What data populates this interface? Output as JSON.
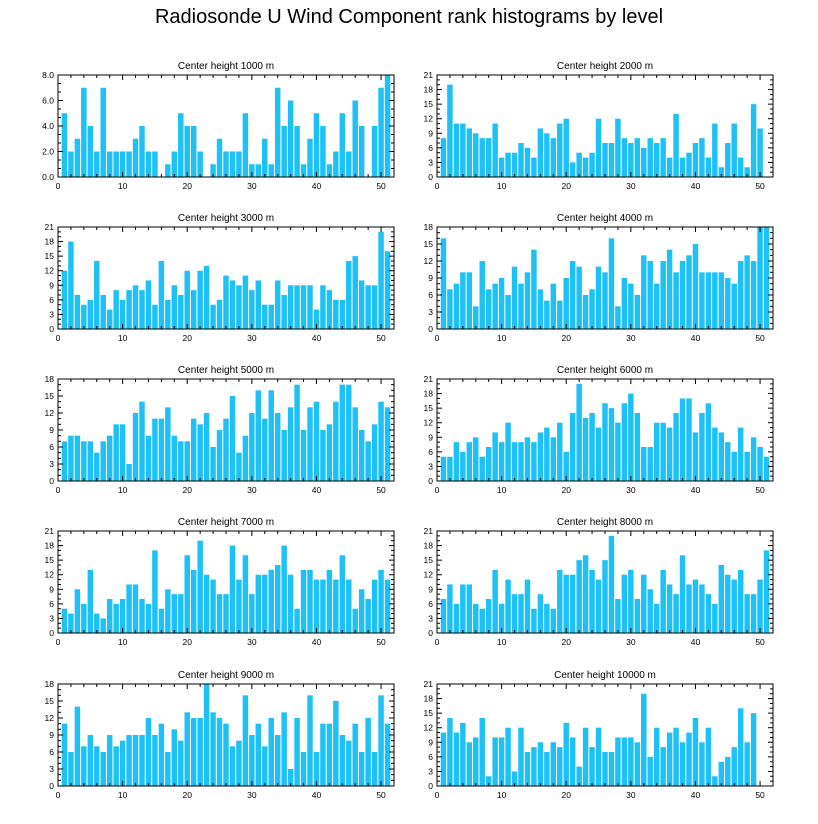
{
  "figure_title": "Radiosonde U Wind Component rank histograms by level",
  "colors": {
    "bar": "#1ec1f6",
    "bar_edge": "#ffffff",
    "axis": "#000000"
  },
  "chart_data": [
    {
      "type": "bar",
      "title": "Center height 1000 m",
      "xlim": [
        0,
        52
      ],
      "ylim": [
        0,
        8
      ],
      "xticks": [
        0,
        10,
        20,
        30,
        40,
        50
      ],
      "yticks": [
        "0.0",
        "2.0",
        "4.0",
        "6.0",
        "8.0"
      ],
      "x": [
        1,
        2,
        3,
        4,
        5,
        6,
        7,
        8,
        9,
        10,
        11,
        12,
        13,
        14,
        15,
        16,
        17,
        18,
        19,
        20,
        21,
        22,
        23,
        24,
        25,
        26,
        27,
        28,
        29,
        30,
        31,
        32,
        33,
        34,
        35,
        36,
        37,
        38,
        39,
        40,
        41,
        42,
        43,
        44,
        45,
        46,
        47,
        48,
        49,
        50,
        51
      ],
      "values": [
        5,
        2,
        3,
        7,
        4,
        2,
        7,
        2,
        2,
        2,
        2,
        3,
        4,
        2,
        2,
        0,
        1,
        2,
        5,
        4,
        4,
        2,
        0,
        1,
        3,
        2,
        2,
        2,
        5,
        1,
        1,
        3,
        1,
        7,
        4,
        6,
        4,
        1,
        3,
        5,
        4,
        1,
        2,
        5,
        2,
        6,
        4,
        0,
        4,
        7,
        8
      ]
    },
    {
      "type": "bar",
      "title": "Center height 2000 m",
      "xlim": [
        0,
        52
      ],
      "ylim": [
        0,
        21
      ],
      "xticks": [
        0,
        10,
        20,
        30,
        40,
        50
      ],
      "yticks": [
        "0",
        "3",
        "6",
        "9",
        "12",
        "15",
        "18",
        "21"
      ],
      "x": [
        1,
        2,
        3,
        4,
        5,
        6,
        7,
        8,
        9,
        10,
        11,
        12,
        13,
        14,
        15,
        16,
        17,
        18,
        19,
        20,
        21,
        22,
        23,
        24,
        25,
        26,
        27,
        28,
        29,
        30,
        31,
        32,
        33,
        34,
        35,
        36,
        37,
        38,
        39,
        40,
        41,
        42,
        43,
        44,
        45,
        46,
        47,
        48,
        49,
        50,
        51
      ],
      "values": [
        8,
        19,
        11,
        11,
        10,
        9,
        8,
        8,
        11,
        4,
        5,
        5,
        7,
        6,
        4,
        10,
        9,
        8,
        11,
        12,
        3,
        5,
        4,
        5,
        12,
        7,
        7,
        12,
        8,
        7,
        8,
        6,
        8,
        7,
        8,
        4,
        13,
        4,
        5,
        7,
        8,
        4,
        11,
        2,
        7,
        11,
        4,
        2,
        15,
        10,
        0
      ]
    },
    {
      "type": "bar",
      "title": "Center height 3000 m",
      "xlim": [
        0,
        52
      ],
      "ylim": [
        0,
        21
      ],
      "xticks": [
        0,
        10,
        20,
        30,
        40,
        50
      ],
      "yticks": [
        "0",
        "3",
        "6",
        "9",
        "12",
        "15",
        "18",
        "21"
      ],
      "x": [
        1,
        2,
        3,
        4,
        5,
        6,
        7,
        8,
        9,
        10,
        11,
        12,
        13,
        14,
        15,
        16,
        17,
        18,
        19,
        20,
        21,
        22,
        23,
        24,
        25,
        26,
        27,
        28,
        29,
        30,
        31,
        32,
        33,
        34,
        35,
        36,
        37,
        38,
        39,
        40,
        41,
        42,
        43,
        44,
        45,
        46,
        47,
        48,
        49,
        50,
        51
      ],
      "values": [
        12,
        18,
        7,
        5,
        6,
        14,
        7,
        4,
        8,
        6,
        8,
        9,
        8,
        10,
        5,
        14,
        6,
        9,
        7,
        12,
        8,
        12,
        13,
        5,
        6,
        11,
        10,
        9,
        11,
        8,
        10,
        5,
        5,
        10,
        7,
        9,
        9,
        9,
        9,
        4,
        9,
        8,
        6,
        6,
        14,
        15,
        10,
        9,
        9,
        20,
        16
      ]
    },
    {
      "type": "bar",
      "title": "Center height 4000 m",
      "xlim": [
        0,
        52
      ],
      "ylim": [
        0,
        18
      ],
      "xticks": [
        0,
        10,
        20,
        30,
        40,
        50
      ],
      "yticks": [
        "0",
        "3",
        "6",
        "9",
        "12",
        "15",
        "18"
      ],
      "x": [
        1,
        2,
        3,
        4,
        5,
        6,
        7,
        8,
        9,
        10,
        11,
        12,
        13,
        14,
        15,
        16,
        17,
        18,
        19,
        20,
        21,
        22,
        23,
        24,
        25,
        26,
        27,
        28,
        29,
        30,
        31,
        32,
        33,
        34,
        35,
        36,
        37,
        38,
        39,
        40,
        41,
        42,
        43,
        44,
        45,
        46,
        47,
        48,
        49,
        50,
        51
      ],
      "values": [
        16,
        7,
        8,
        10,
        10,
        4,
        12,
        7,
        8,
        9,
        6,
        11,
        8,
        10,
        14,
        7,
        5,
        8,
        5,
        9,
        12,
        11,
        6,
        7,
        11,
        10,
        16,
        4,
        9,
        8,
        6,
        13,
        12,
        8,
        12,
        14,
        10,
        12,
        13,
        15,
        10,
        10,
        10,
        10,
        9,
        8,
        12,
        13,
        12,
        18,
        18
      ]
    },
    {
      "type": "bar",
      "title": "Center height 5000 m",
      "xlim": [
        0,
        52
      ],
      "ylim": [
        0,
        18
      ],
      "xticks": [
        0,
        10,
        20,
        30,
        40,
        50
      ],
      "yticks": [
        "0",
        "3",
        "6",
        "9",
        "12",
        "15",
        "18"
      ],
      "x": [
        1,
        2,
        3,
        4,
        5,
        6,
        7,
        8,
        9,
        10,
        11,
        12,
        13,
        14,
        15,
        16,
        17,
        18,
        19,
        20,
        21,
        22,
        23,
        24,
        25,
        26,
        27,
        28,
        29,
        30,
        31,
        32,
        33,
        34,
        35,
        36,
        37,
        38,
        39,
        40,
        41,
        42,
        43,
        44,
        45,
        46,
        47,
        48,
        49,
        50,
        51
      ],
      "values": [
        7,
        8,
        8,
        7,
        7,
        5,
        7,
        8,
        10,
        10,
        3,
        12,
        14,
        8,
        11,
        11,
        13,
        8,
        7,
        7,
        11,
        10,
        12,
        6,
        9,
        11,
        15,
        5,
        8,
        12,
        16,
        11,
        16,
        12,
        9,
        13,
        17,
        9,
        13,
        14,
        9,
        10,
        14,
        17,
        17,
        13,
        9,
        7,
        10,
        14,
        13
      ]
    },
    {
      "type": "bar",
      "title": "Center height 6000 m",
      "xlim": [
        0,
        52
      ],
      "ylim": [
        0,
        21
      ],
      "xticks": [
        0,
        10,
        20,
        30,
        40,
        50
      ],
      "yticks": [
        "0",
        "3",
        "6",
        "9",
        "12",
        "15",
        "18",
        "21"
      ],
      "x": [
        1,
        2,
        3,
        4,
        5,
        6,
        7,
        8,
        9,
        10,
        11,
        12,
        13,
        14,
        15,
        16,
        17,
        18,
        19,
        20,
        21,
        22,
        23,
        24,
        25,
        26,
        27,
        28,
        29,
        30,
        31,
        32,
        33,
        34,
        35,
        36,
        37,
        38,
        39,
        40,
        41,
        42,
        43,
        44,
        45,
        46,
        47,
        48,
        49,
        50,
        51
      ],
      "values": [
        5,
        5,
        8,
        6,
        8,
        9,
        5,
        7,
        10,
        8,
        12,
        8,
        8,
        9,
        8,
        10,
        11,
        9,
        12,
        6,
        14,
        20,
        13,
        14,
        11,
        16,
        15,
        12,
        16,
        18,
        14,
        7,
        7,
        12,
        12,
        11,
        14,
        17,
        17,
        10,
        14,
        16,
        11,
        10,
        8,
        6,
        11,
        6,
        9,
        7,
        5
      ]
    },
    {
      "type": "bar",
      "title": "Center height 7000 m",
      "xlim": [
        0,
        52
      ],
      "ylim": [
        0,
        21
      ],
      "xticks": [
        0,
        10,
        20,
        30,
        40,
        50
      ],
      "yticks": [
        "0",
        "3",
        "6",
        "9",
        "12",
        "15",
        "18",
        "21"
      ],
      "x": [
        1,
        2,
        3,
        4,
        5,
        6,
        7,
        8,
        9,
        10,
        11,
        12,
        13,
        14,
        15,
        16,
        17,
        18,
        19,
        20,
        21,
        22,
        23,
        24,
        25,
        26,
        27,
        28,
        29,
        30,
        31,
        32,
        33,
        34,
        35,
        36,
        37,
        38,
        39,
        40,
        41,
        42,
        43,
        44,
        45,
        46,
        47,
        48,
        49,
        50,
        51
      ],
      "values": [
        5,
        4,
        9,
        6,
        13,
        4,
        3,
        7,
        6,
        7,
        10,
        10,
        7,
        6,
        17,
        5,
        9,
        8,
        8,
        16,
        13,
        19,
        12,
        11,
        8,
        8,
        18,
        11,
        16,
        8,
        12,
        12,
        13,
        14,
        18,
        12,
        5,
        13,
        13,
        11,
        11,
        13,
        11,
        16,
        11,
        5,
        9,
        7,
        11,
        13,
        11
      ]
    },
    {
      "type": "bar",
      "title": "Center height 8000 m",
      "xlim": [
        0,
        52
      ],
      "ylim": [
        0,
        21
      ],
      "xticks": [
        0,
        10,
        20,
        30,
        40,
        50
      ],
      "yticks": [
        "0",
        "3",
        "6",
        "9",
        "12",
        "15",
        "18",
        "21"
      ],
      "x": [
        1,
        2,
        3,
        4,
        5,
        6,
        7,
        8,
        9,
        10,
        11,
        12,
        13,
        14,
        15,
        16,
        17,
        18,
        19,
        20,
        21,
        22,
        23,
        24,
        25,
        26,
        27,
        28,
        29,
        30,
        31,
        32,
        33,
        34,
        35,
        36,
        37,
        38,
        39,
        40,
        41,
        42,
        43,
        44,
        45,
        46,
        47,
        48,
        49,
        50,
        51
      ],
      "values": [
        7,
        10,
        6,
        10,
        10,
        6,
        5,
        7,
        13,
        6,
        11,
        8,
        8,
        11,
        5,
        8,
        6,
        5,
        13,
        12,
        12,
        15,
        16,
        13,
        11,
        15,
        20,
        7,
        12,
        13,
        7,
        12,
        9,
        6,
        13,
        10,
        8,
        16,
        10,
        11,
        10,
        8,
        6,
        14,
        12,
        11,
        13,
        8,
        8,
        11,
        17
      ]
    },
    {
      "type": "bar",
      "title": "Center height 9000 m",
      "xlim": [
        0,
        52
      ],
      "ylim": [
        0,
        18
      ],
      "xticks": [
        0,
        10,
        20,
        30,
        40,
        50
      ],
      "yticks": [
        "0",
        "3",
        "6",
        "9",
        "12",
        "15",
        "18"
      ],
      "x": [
        1,
        2,
        3,
        4,
        5,
        6,
        7,
        8,
        9,
        10,
        11,
        12,
        13,
        14,
        15,
        16,
        17,
        18,
        19,
        20,
        21,
        22,
        23,
        24,
        25,
        26,
        27,
        28,
        29,
        30,
        31,
        32,
        33,
        34,
        35,
        36,
        37,
        38,
        39,
        40,
        41,
        42,
        43,
        44,
        45,
        46,
        47,
        48,
        49,
        50,
        51
      ],
      "values": [
        11,
        6,
        14,
        7,
        9,
        7,
        6,
        9,
        7,
        8,
        9,
        9,
        9,
        12,
        9,
        11,
        6,
        10,
        8,
        13,
        12,
        12,
        18,
        13,
        12,
        11,
        7,
        8,
        16,
        9,
        11,
        7,
        12,
        9,
        13,
        3,
        12,
        6,
        16,
        6,
        11,
        11,
        15,
        9,
        8,
        11,
        6,
        12,
        6,
        16,
        11
      ]
    },
    {
      "type": "bar",
      "title": "Center height 10000 m",
      "xlim": [
        0,
        52
      ],
      "ylim": [
        0,
        21
      ],
      "xticks": [
        0,
        10,
        20,
        30,
        40,
        50
      ],
      "yticks": [
        "0",
        "3",
        "6",
        "9",
        "12",
        "15",
        "18",
        "21"
      ],
      "x": [
        1,
        2,
        3,
        4,
        5,
        6,
        7,
        8,
        9,
        10,
        11,
        12,
        13,
        14,
        15,
        16,
        17,
        18,
        19,
        20,
        21,
        22,
        23,
        24,
        25,
        26,
        27,
        28,
        29,
        30,
        31,
        32,
        33,
        34,
        35,
        36,
        37,
        38,
        39,
        40,
        41,
        42,
        43,
        44,
        45,
        46,
        47,
        48,
        49,
        50,
        51
      ],
      "values": [
        11,
        14,
        11,
        13,
        9,
        10,
        14,
        2,
        10,
        10,
        12,
        3,
        12,
        7,
        8,
        9,
        7,
        9,
        8,
        13,
        10,
        4,
        12,
        8,
        12,
        7,
        7,
        10,
        10,
        10,
        9,
        19,
        6,
        12,
        8,
        11,
        12,
        9,
        11,
        14,
        9,
        12,
        2,
        5,
        6,
        8,
        16,
        9,
        15,
        0,
        0
      ]
    }
  ]
}
